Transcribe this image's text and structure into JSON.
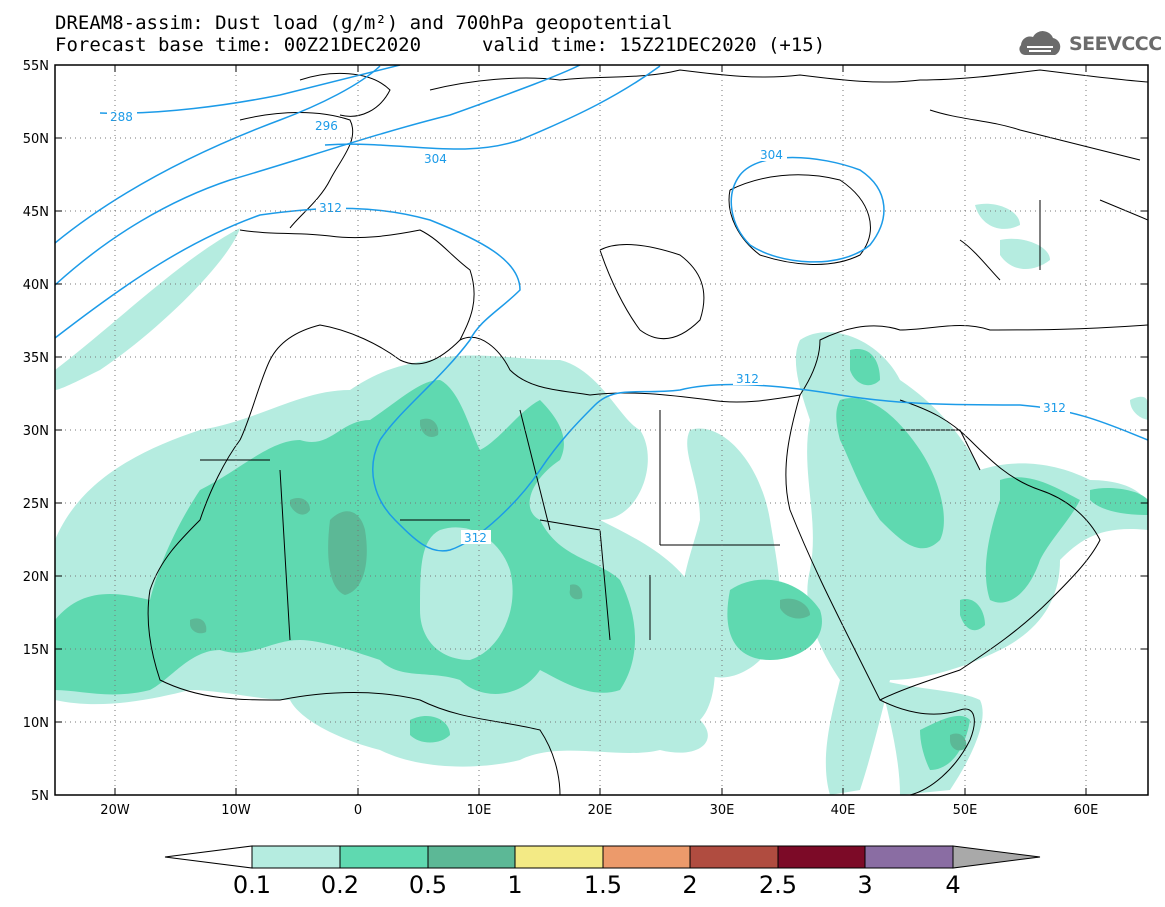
{
  "title": {
    "line1": "DREAM8-assim: Dust load (g/m²) and 700hPa geopotential",
    "base_time": "Forecast base time: 00Z21DEC2020",
    "valid_time": "valid time: 15Z21DEC2020 (+15)"
  },
  "logo": {
    "text": "SEEVCCC",
    "icon": "cloud-icon"
  },
  "map": {
    "lat_labels": [
      "55N",
      "50N",
      "45N",
      "40N",
      "35N",
      "30N",
      "25N",
      "20N",
      "15N",
      "10N",
      "5N"
    ],
    "lon_labels": [
      "20W",
      "10W",
      "0",
      "10E",
      "20E",
      "30E",
      "40E",
      "50E",
      "60E"
    ],
    "contour_labels": [
      "288",
      "296",
      "304",
      "312",
      "304",
      "312",
      "312",
      "312"
    ]
  },
  "colorbar": {
    "labels": [
      "0.1",
      "0.2",
      "0.5",
      "1",
      "1.5",
      "2",
      "2.5",
      "3",
      "4"
    ],
    "colors": [
      "#b5ece0",
      "#5fd9b0",
      "#5cb896",
      "#f3ea85",
      "#ec9a6b",
      "#b04c40",
      "#7c0a27",
      "#8a6da3"
    ],
    "below_color": "#ffffff",
    "above_color": "#a9a9a9"
  },
  "colors": {
    "contour": "#1c9be8",
    "light_dust": "#b5ece0",
    "medium_dust": "#5fd9b0",
    "heavy_dust": "#5cb896"
  }
}
